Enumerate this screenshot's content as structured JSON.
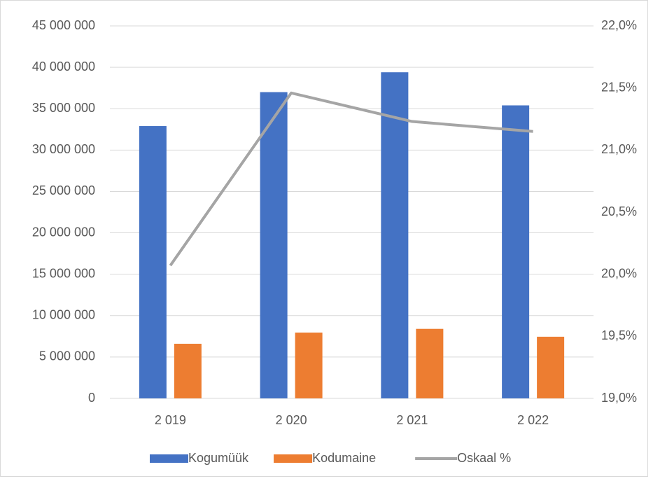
{
  "chart_data": {
    "type": "bar-line",
    "categories": [
      "2 019",
      "2 020",
      "2 021",
      "2 022"
    ],
    "series": [
      {
        "name": "Kogumüük",
        "type": "bar",
        "color": "#4472c4",
        "values": [
          32900000,
          37000000,
          39400000,
          35400000
        ]
      },
      {
        "name": "Kodumaine",
        "type": "bar",
        "color": "#ed7d31",
        "values": [
          6600000,
          7950000,
          8400000,
          7450000
        ]
      },
      {
        "name": "Oskaal %",
        "type": "line",
        "axis": "y2",
        "color": "#a5a5a5",
        "values": [
          20.07,
          21.46,
          21.23,
          21.15
        ]
      }
    ],
    "ylim": [
      0,
      45000000
    ],
    "yticks": [
      0,
      {
        "value": 5000000,
        "label": "5 000 000"
      },
      {
        "value": 10000000,
        "label": "10 000 000"
      },
      {
        "value": 15000000,
        "label": "15 000 000"
      },
      {
        "value": 20000000,
        "label": "20 000 000"
      },
      {
        "value": 25000000,
        "label": "25 000 000"
      },
      {
        "value": 30000000,
        "label": "30 000 000"
      },
      {
        "value": 35000000,
        "label": "35 000 000"
      },
      {
        "value": 40000000,
        "label": "40 000 000"
      },
      {
        "value": 45000000,
        "label": "45 000 000"
      }
    ],
    "y2lim": [
      19,
      22
    ],
    "y2ticks": [
      {
        "value": 19,
        "label": "19,0%"
      },
      {
        "value": 19.5,
        "label": "19,5%"
      },
      {
        "value": 20,
        "label": "20,0%"
      },
      {
        "value": 20.5,
        "label": "20,5%"
      },
      {
        "value": 21,
        "label": "21,0%"
      },
      {
        "value": 21.5,
        "label": "21,5%"
      },
      {
        "value": 22,
        "label": "22,0%"
      }
    ],
    "grid": true,
    "legend": "bottom"
  }
}
